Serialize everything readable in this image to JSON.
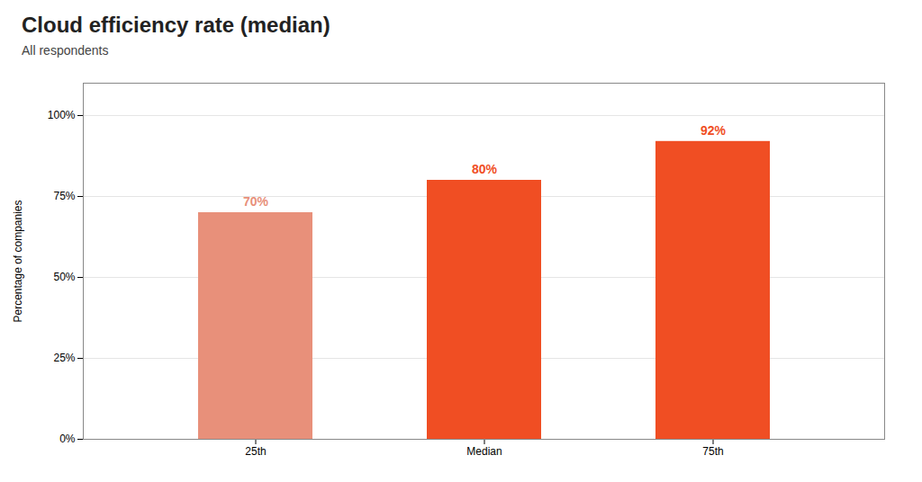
{
  "chart_data": {
    "type": "bar",
    "title": "Cloud efficiency rate (median)",
    "subtitle": "All respondents",
    "categories": [
      "25th",
      "Median",
      "75th"
    ],
    "values": [
      70,
      80,
      92
    ],
    "colors": [
      "#e8907a",
      "#f04e23",
      "#f04e23"
    ],
    "data_labels": true,
    "value_labels": [
      "70%",
      "80%",
      "92%"
    ],
    "ylabel": "Percentage of companies",
    "ylim": [
      0,
      110
    ],
    "yticks": [
      {
        "value": 0,
        "label": "0%"
      },
      {
        "value": 25,
        "label": "25%"
      },
      {
        "value": 50,
        "label": "50%"
      },
      {
        "value": 75,
        "label": "75%"
      },
      {
        "value": 100,
        "label": "100%"
      }
    ],
    "grid": true
  }
}
